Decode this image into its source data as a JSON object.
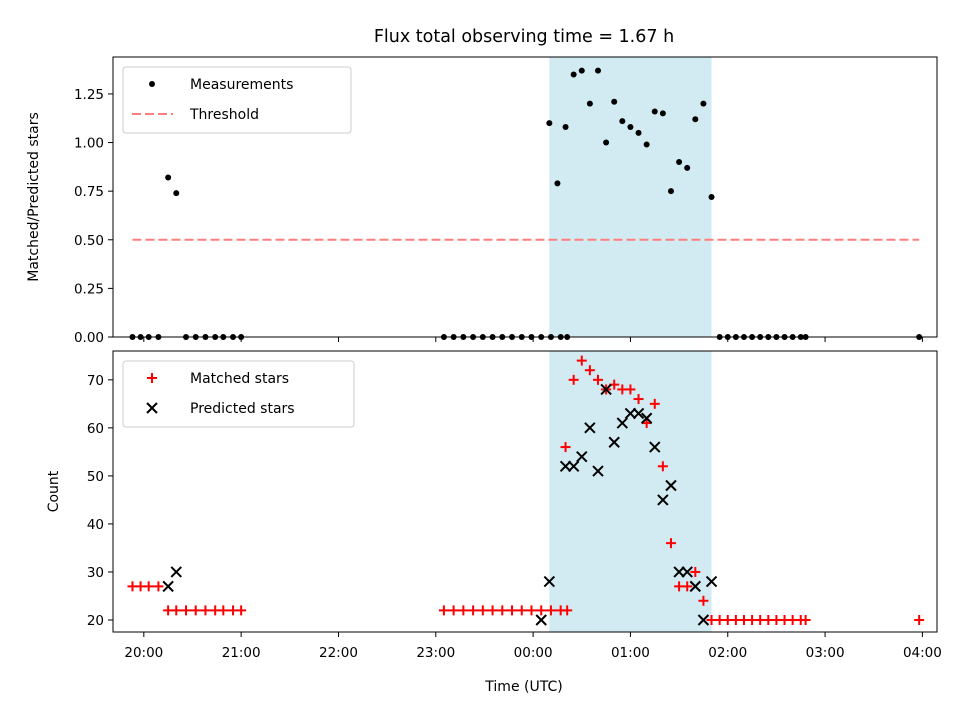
{
  "chart_data": {
    "type": "scatter",
    "title": "Flux total observing time = 1.67 h",
    "xlabel": "Time (UTC)",
    "xlim": [
      "19:41",
      "04:09"
    ],
    "x_ticks": [
      "20:00",
      "21:00",
      "22:00",
      "23:00",
      "00:00",
      "01:00",
      "02:00",
      "03:00",
      "04:00"
    ],
    "highlight_region": {
      "x_start": "00:10",
      "x_end": "01:50",
      "color": "#add8e6"
    },
    "panels": [
      {
        "name": "ratio",
        "ylabel": "Matched/Predicted stars",
        "ylim": [
          0,
          1.44
        ],
        "y_ticks": [
          "0.00",
          "0.25",
          "0.50",
          "0.75",
          "1.00",
          "1.25"
        ],
        "legend_position": "top-left",
        "series": [
          {
            "name": "Measurements",
            "marker": "dot",
            "color": "#000000",
            "points": [
              [
                "19:53",
                0
              ],
              [
                "19:58",
                0
              ],
              [
                "20:03",
                0
              ],
              [
                "20:09",
                0
              ],
              [
                "20:15",
                0.82
              ],
              [
                "20:20",
                0.74
              ],
              [
                "20:26",
                0
              ],
              [
                "20:32",
                0
              ],
              [
                "20:38",
                0
              ],
              [
                "20:44",
                0
              ],
              [
                "20:49",
                0
              ],
              [
                "20:55",
                0
              ],
              [
                "21:00",
                0
              ],
              [
                "23:05",
                0
              ],
              [
                "23:11",
                0
              ],
              [
                "23:17",
                0
              ],
              [
                "23:23",
                0
              ],
              [
                "23:29",
                0
              ],
              [
                "23:35",
                0
              ],
              [
                "23:41",
                0
              ],
              [
                "23:47",
                0
              ],
              [
                "23:53",
                0
              ],
              [
                "23:59",
                0
              ],
              [
                "00:05",
                0
              ],
              [
                "00:11",
                0
              ],
              [
                "00:17",
                0
              ],
              [
                "00:21",
                0
              ],
              [
                "00:10",
                1.1
              ],
              [
                "00:15",
                0.79
              ],
              [
                "00:20",
                1.08
              ],
              [
                "00:25",
                1.35
              ],
              [
                "00:30",
                1.37
              ],
              [
                "00:35",
                1.2
              ],
              [
                "00:40",
                1.37
              ],
              [
                "00:45",
                1.0
              ],
              [
                "00:50",
                1.21
              ],
              [
                "00:55",
                1.11
              ],
              [
                "01:00",
                1.08
              ],
              [
                "01:05",
                1.05
              ],
              [
                "01:10",
                0.99
              ],
              [
                "01:15",
                1.16
              ],
              [
                "01:20",
                1.15
              ],
              [
                "01:25",
                0.75
              ],
              [
                "01:30",
                0.9
              ],
              [
                "01:35",
                0.87
              ],
              [
                "01:40",
                1.12
              ],
              [
                "01:45",
                1.2
              ],
              [
                "01:50",
                0.72
              ],
              [
                "01:55",
                0
              ],
              [
                "02:00",
                0
              ],
              [
                "02:05",
                0
              ],
              [
                "02:10",
                0
              ],
              [
                "02:15",
                0
              ],
              [
                "02:20",
                0
              ],
              [
                "02:25",
                0
              ],
              [
                "02:30",
                0
              ],
              [
                "02:35",
                0
              ],
              [
                "02:40",
                0
              ],
              [
                "02:45",
                0
              ],
              [
                "02:48",
                0
              ],
              [
                "03:58",
                0
              ]
            ]
          },
          {
            "name": "Threshold",
            "line": "dashed",
            "color": "#ff7f7f",
            "points": [
              [
                "19:53",
                0.5
              ],
              [
                "03:58",
                0.5
              ]
            ]
          }
        ]
      },
      {
        "name": "counts",
        "ylabel": "Count",
        "ylim": [
          17.5,
          76
        ],
        "y_ticks": [
          "20",
          "30",
          "40",
          "50",
          "60",
          "70"
        ],
        "legend_position": "top-left",
        "series": [
          {
            "name": "Matched stars",
            "marker": "plus",
            "color": "#ff0000",
            "points": [
              [
                "19:53",
                27
              ],
              [
                "19:58",
                27
              ],
              [
                "20:03",
                27
              ],
              [
                "20:09",
                27
              ],
              [
                "20:15",
                22
              ],
              [
                "20:20",
                22
              ],
              [
                "20:26",
                22
              ],
              [
                "20:32",
                22
              ],
              [
                "20:38",
                22
              ],
              [
                "20:44",
                22
              ],
              [
                "20:49",
                22
              ],
              [
                "20:55",
                22
              ],
              [
                "21:00",
                22
              ],
              [
                "23:05",
                22
              ],
              [
                "23:11",
                22
              ],
              [
                "23:17",
                22
              ],
              [
                "23:23",
                22
              ],
              [
                "23:29",
                22
              ],
              [
                "23:35",
                22
              ],
              [
                "23:41",
                22
              ],
              [
                "23:47",
                22
              ],
              [
                "23:53",
                22
              ],
              [
                "23:59",
                22
              ],
              [
                "00:05",
                22
              ],
              [
                "00:11",
                22
              ],
              [
                "00:17",
                22
              ],
              [
                "00:21",
                22
              ],
              [
                "00:20",
                56
              ],
              [
                "00:25",
                70
              ],
              [
                "00:30",
                74
              ],
              [
                "00:35",
                72
              ],
              [
                "00:40",
                70
              ],
              [
                "00:45",
                68
              ],
              [
                "00:50",
                69
              ],
              [
                "00:55",
                68
              ],
              [
                "01:00",
                68
              ],
              [
                "01:05",
                66
              ],
              [
                "01:10",
                61
              ],
              [
                "01:15",
                65
              ],
              [
                "01:20",
                52
              ],
              [
                "01:25",
                36
              ],
              [
                "01:30",
                27
              ],
              [
                "01:35",
                27
              ],
              [
                "01:40",
                30
              ],
              [
                "01:45",
                24
              ],
              [
                "01:50",
                20
              ],
              [
                "01:55",
                20
              ],
              [
                "02:00",
                20
              ],
              [
                "02:05",
                20
              ],
              [
                "02:10",
                20
              ],
              [
                "02:15",
                20
              ],
              [
                "02:20",
                20
              ],
              [
                "02:25",
                20
              ],
              [
                "02:30",
                20
              ],
              [
                "02:35",
                20
              ],
              [
                "02:40",
                20
              ],
              [
                "02:45",
                20
              ],
              [
                "02:48",
                20
              ],
              [
                "03:58",
                20
              ]
            ]
          },
          {
            "name": "Predicted stars",
            "marker": "x",
            "color": "#000000",
            "points": [
              [
                "20:15",
                27
              ],
              [
                "20:20",
                30
              ],
              [
                "00:05",
                20
              ],
              [
                "00:10",
                28
              ],
              [
                "00:20",
                52
              ],
              [
                "00:25",
                52
              ],
              [
                "00:30",
                54
              ],
              [
                "00:35",
                60
              ],
              [
                "00:40",
                51
              ],
              [
                "00:45",
                68
              ],
              [
                "00:50",
                57
              ],
              [
                "00:55",
                61
              ],
              [
                "01:00",
                63
              ],
              [
                "01:05",
                63
              ],
              [
                "01:10",
                62
              ],
              [
                "01:15",
                56
              ],
              [
                "01:20",
                45
              ],
              [
                "01:25",
                48
              ],
              [
                "01:30",
                30
              ],
              [
                "01:35",
                30
              ],
              [
                "01:40",
                27
              ],
              [
                "01:45",
                20
              ],
              [
                "01:50",
                28
              ]
            ]
          }
        ]
      }
    ]
  }
}
